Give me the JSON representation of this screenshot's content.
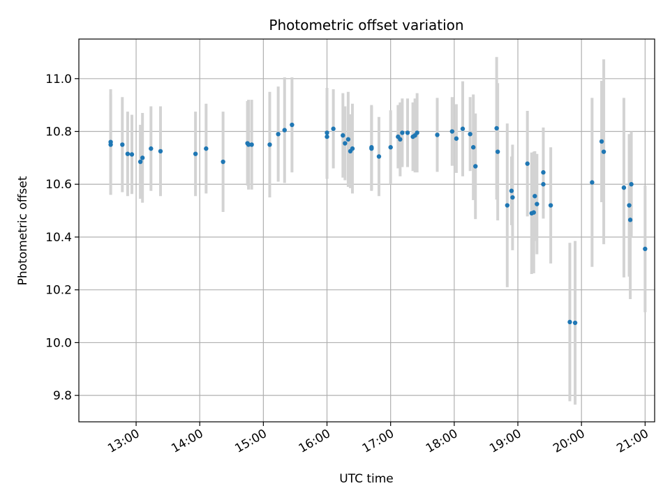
{
  "chart_data": {
    "type": "scatter",
    "title": "Photometric offset variation",
    "xlabel": "UTC time",
    "ylabel": "Photometric offset",
    "x_unit": "hours UTC",
    "xlim": [
      "12:06",
      "21:09"
    ],
    "ylim": [
      9.7,
      11.15
    ],
    "grid": true,
    "x_ticks": [
      "13:00",
      "14:00",
      "15:00",
      "16:00",
      "17:00",
      "18:00",
      "19:00",
      "20:00",
      "21:00"
    ],
    "y_ticks": [
      "9.8",
      "10.0",
      "10.2",
      "10.4",
      "10.6",
      "10.8",
      "11.0"
    ],
    "colors": {
      "point": "#1f77b4",
      "errorbar": "#d3d3d3",
      "grid": "#b0b0b0"
    },
    "points": [
      {
        "x": "12:36",
        "y": 10.75,
        "err": 0.19
      },
      {
        "x": "12:36",
        "y": 10.76,
        "err": 0.2
      },
      {
        "x": "12:47",
        "y": 10.75,
        "err": 0.18
      },
      {
        "x": "12:52",
        "y": 10.715,
        "err": 0.16
      },
      {
        "x": "12:56",
        "y": 10.713,
        "err": 0.15
      },
      {
        "x": "13:04",
        "y": 10.685,
        "err": 0.14
      },
      {
        "x": "13:06",
        "y": 10.7,
        "err": 0.17
      },
      {
        "x": "13:14",
        "y": 10.735,
        "err": 0.16
      },
      {
        "x": "13:23",
        "y": 10.725,
        "err": 0.17
      },
      {
        "x": "13:56",
        "y": 10.715,
        "err": 0.16
      },
      {
        "x": "14:06",
        "y": 10.735,
        "err": 0.17
      },
      {
        "x": "14:22",
        "y": 10.685,
        "err": 0.19
      },
      {
        "x": "14:45",
        "y": 10.755,
        "err": 0.16
      },
      {
        "x": "14:46",
        "y": 10.75,
        "err": 0.17
      },
      {
        "x": "14:49",
        "y": 10.75,
        "err": 0.17
      },
      {
        "x": "15:06",
        "y": 10.75,
        "err": 0.2
      },
      {
        "x": "15:14",
        "y": 10.79,
        "err": 0.18
      },
      {
        "x": "15:20",
        "y": 10.805,
        "err": 0.2
      },
      {
        "x": "15:27",
        "y": 10.825,
        "err": 0.18
      },
      {
        "x": "16:00",
        "y": 10.78,
        "err": 0.16
      },
      {
        "x": "16:00",
        "y": 10.795,
        "err": 0.17
      },
      {
        "x": "16:06",
        "y": 10.81,
        "err": 0.15
      },
      {
        "x": "16:15",
        "y": 10.785,
        "err": 0.16
      },
      {
        "x": "16:17",
        "y": 10.755,
        "err": 0.14
      },
      {
        "x": "16:20",
        "y": 10.77,
        "err": 0.18
      },
      {
        "x": "16:22",
        "y": 10.725,
        "err": 0.14
      },
      {
        "x": "16:24",
        "y": 10.735,
        "err": 0.17
      },
      {
        "x": "16:42",
        "y": 10.74,
        "err": 0.16
      },
      {
        "x": "16:42",
        "y": 10.735,
        "err": 0.16
      },
      {
        "x": "16:49",
        "y": 10.705,
        "err": 0.15
      },
      {
        "x": "17:00",
        "y": 10.74,
        "err": 0.14
      },
      {
        "x": "17:07",
        "y": 10.78,
        "err": 0.12
      },
      {
        "x": "17:09",
        "y": 10.77,
        "err": 0.14
      },
      {
        "x": "17:11",
        "y": 10.795,
        "err": 0.13
      },
      {
        "x": "17:16",
        "y": 10.795,
        "err": 0.13
      },
      {
        "x": "17:21",
        "y": 10.78,
        "err": 0.13
      },
      {
        "x": "17:23",
        "y": 10.785,
        "err": 0.14
      },
      {
        "x": "17:25",
        "y": 10.795,
        "err": 0.15
      },
      {
        "x": "17:44",
        "y": 10.787,
        "err": 0.14
      },
      {
        "x": "17:58",
        "y": 10.8,
        "err": 0.13
      },
      {
        "x": "18:02",
        "y": 10.773,
        "err": 0.13
      },
      {
        "x": "18:08",
        "y": 10.81,
        "err": 0.18
      },
      {
        "x": "18:15",
        "y": 10.79,
        "err": 0.14
      },
      {
        "x": "18:18",
        "y": 10.74,
        "err": 0.2
      },
      {
        "x": "18:20",
        "y": 10.668,
        "err": 0.2
      },
      {
        "x": "18:40",
        "y": 10.812,
        "err": 0.27
      },
      {
        "x": "18:41",
        "y": 10.723,
        "err": 0.26
      },
      {
        "x": "18:50",
        "y": 10.52,
        "err": 0.31
      },
      {
        "x": "18:54",
        "y": 10.575,
        "err": 0.13
      },
      {
        "x": "18:55",
        "y": 10.55,
        "err": 0.2
      },
      {
        "x": "19:09",
        "y": 10.678,
        "err": 0.2
      },
      {
        "x": "19:13",
        "y": 10.49,
        "err": 0.23
      },
      {
        "x": "19:15",
        "y": 10.493,
        "err": 0.23
      },
      {
        "x": "19:16",
        "y": 10.555,
        "err": 0.17
      },
      {
        "x": "19:18",
        "y": 10.525,
        "err": 0.19
      },
      {
        "x": "19:24",
        "y": 10.645,
        "err": 0.17
      },
      {
        "x": "19:24",
        "y": 10.6,
        "err": 0.13
      },
      {
        "x": "19:31",
        "y": 10.52,
        "err": 0.22
      },
      {
        "x": "19:49",
        "y": 10.078,
        "err": 0.3
      },
      {
        "x": "19:54",
        "y": 10.075,
        "err": 0.31
      },
      {
        "x": "20:10",
        "y": 10.607,
        "err": 0.32
      },
      {
        "x": "20:19",
        "y": 10.762,
        "err": 0.23
      },
      {
        "x": "20:21",
        "y": 10.723,
        "err": 0.35
      },
      {
        "x": "20:40",
        "y": 10.587,
        "err": 0.34
      },
      {
        "x": "20:45",
        "y": 10.52,
        "err": 0.27
      },
      {
        "x": "20:46",
        "y": 10.465,
        "err": 0.3
      },
      {
        "x": "20:47",
        "y": 10.6,
        "err": 0.2
      },
      {
        "x": "21:00",
        "y": 10.355,
        "err": 0.24
      }
    ]
  }
}
